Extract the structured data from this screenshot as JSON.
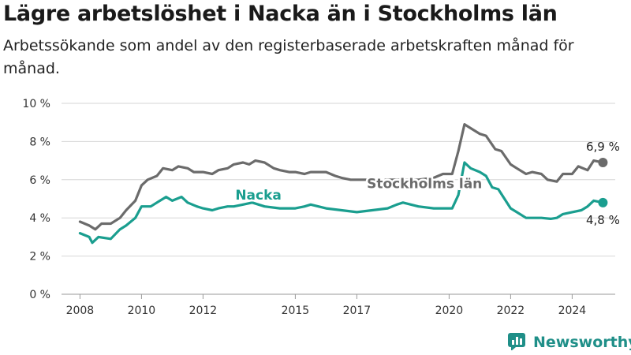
{
  "header": {
    "title": "Lägre arbetslöshet i Nacka än i Stockholms län",
    "subtitle": "Arbetssökande som andel av den registerbaserade arbetskraften månad för månad."
  },
  "branding": {
    "logo_text": "Newsworthy",
    "logo_icon": "bar-chart-icon",
    "color": "#1f8f88"
  },
  "chart_data": {
    "type": "line",
    "title": "",
    "xlabel": "",
    "ylabel": "",
    "xlim": [
      2007.4,
      2025.4
    ],
    "ylim": [
      0,
      10
    ],
    "grid": true,
    "y_ticks": [
      {
        "value": 0,
        "label": "0 %"
      },
      {
        "value": 2,
        "label": "2 %"
      },
      {
        "value": 4,
        "label": "4 %"
      },
      {
        "value": 6,
        "label": "6 %"
      },
      {
        "value": 8,
        "label": "8 %"
      },
      {
        "value": 10,
        "label": "10 %"
      }
    ],
    "x_ticks": [
      {
        "value": 2008,
        "label": "2008"
      },
      {
        "value": 2010,
        "label": "2010"
      },
      {
        "value": 2012,
        "label": "2012"
      },
      {
        "value": 2015,
        "label": "2015"
      },
      {
        "value": 2017,
        "label": "2017"
      },
      {
        "value": 2020,
        "label": "2020"
      },
      {
        "value": 2022,
        "label": "2022"
      },
      {
        "value": 2024,
        "label": "2024"
      }
    ],
    "series": [
      {
        "name": "Stockholms län",
        "color": "#6b6b6b",
        "end_label": "6,9 %",
        "points": [
          [
            2008.0,
            3.8
          ],
          [
            2008.3,
            3.6
          ],
          [
            2008.5,
            3.4
          ],
          [
            2008.7,
            3.7
          ],
          [
            2009.0,
            3.7
          ],
          [
            2009.3,
            4.0
          ],
          [
            2009.5,
            4.4
          ],
          [
            2009.8,
            4.9
          ],
          [
            2010.0,
            5.7
          ],
          [
            2010.2,
            6.0
          ],
          [
            2010.5,
            6.2
          ],
          [
            2010.7,
            6.6
          ],
          [
            2011.0,
            6.5
          ],
          [
            2011.2,
            6.7
          ],
          [
            2011.5,
            6.6
          ],
          [
            2011.7,
            6.4
          ],
          [
            2012.0,
            6.4
          ],
          [
            2012.3,
            6.3
          ],
          [
            2012.5,
            6.5
          ],
          [
            2012.8,
            6.6
          ],
          [
            2013.0,
            6.8
          ],
          [
            2013.3,
            6.9
          ],
          [
            2013.5,
            6.8
          ],
          [
            2013.7,
            7.0
          ],
          [
            2014.0,
            6.9
          ],
          [
            2014.3,
            6.6
          ],
          [
            2014.5,
            6.5
          ],
          [
            2014.8,
            6.4
          ],
          [
            2015.0,
            6.4
          ],
          [
            2015.3,
            6.3
          ],
          [
            2015.5,
            6.4
          ],
          [
            2016.0,
            6.4
          ],
          [
            2016.3,
            6.2
          ],
          [
            2016.5,
            6.1
          ],
          [
            2016.8,
            6.0
          ],
          [
            2017.0,
            6.0
          ],
          [
            2017.3,
            6.0
          ],
          [
            2017.5,
            5.95
          ],
          [
            2018.0,
            6.0
          ],
          [
            2018.5,
            6.0
          ],
          [
            2019.0,
            6.0
          ],
          [
            2019.5,
            6.1
          ],
          [
            2019.8,
            6.3
          ],
          [
            2020.1,
            6.3
          ],
          [
            2020.3,
            7.5
          ],
          [
            2020.5,
            8.9
          ],
          [
            2020.7,
            8.7
          ],
          [
            2021.0,
            8.4
          ],
          [
            2021.2,
            8.3
          ],
          [
            2021.5,
            7.6
          ],
          [
            2021.7,
            7.5
          ],
          [
            2022.0,
            6.8
          ],
          [
            2022.2,
            6.6
          ],
          [
            2022.5,
            6.3
          ],
          [
            2022.7,
            6.4
          ],
          [
            2023.0,
            6.3
          ],
          [
            2023.2,
            6.0
          ],
          [
            2023.5,
            5.9
          ],
          [
            2023.7,
            6.3
          ],
          [
            2024.0,
            6.3
          ],
          [
            2024.2,
            6.7
          ],
          [
            2024.5,
            6.5
          ],
          [
            2024.7,
            7.0
          ],
          [
            2025.0,
            6.9
          ]
        ]
      },
      {
        "name": "Nacka",
        "color": "#1a9e8f",
        "end_label": "4,8 %",
        "points": [
          [
            2008.0,
            3.2
          ],
          [
            2008.3,
            3.0
          ],
          [
            2008.4,
            2.7
          ],
          [
            2008.6,
            3.0
          ],
          [
            2009.0,
            2.9
          ],
          [
            2009.3,
            3.4
          ],
          [
            2009.5,
            3.6
          ],
          [
            2009.8,
            4.0
          ],
          [
            2010.0,
            4.6
          ],
          [
            2010.3,
            4.6
          ],
          [
            2010.5,
            4.8
          ],
          [
            2010.8,
            5.1
          ],
          [
            2011.0,
            4.9
          ],
          [
            2011.3,
            5.1
          ],
          [
            2011.5,
            4.8
          ],
          [
            2011.8,
            4.6
          ],
          [
            2012.0,
            4.5
          ],
          [
            2012.3,
            4.4
          ],
          [
            2012.5,
            4.5
          ],
          [
            2012.8,
            4.6
          ],
          [
            2013.0,
            4.6
          ],
          [
            2013.3,
            4.7
          ],
          [
            2013.6,
            4.8
          ],
          [
            2014.0,
            4.6
          ],
          [
            2014.5,
            4.5
          ],
          [
            2015.0,
            4.5
          ],
          [
            2015.3,
            4.6
          ],
          [
            2015.5,
            4.7
          ],
          [
            2016.0,
            4.5
          ],
          [
            2016.5,
            4.4
          ],
          [
            2017.0,
            4.3
          ],
          [
            2017.5,
            4.4
          ],
          [
            2018.0,
            4.5
          ],
          [
            2018.3,
            4.7
          ],
          [
            2018.5,
            4.8
          ],
          [
            2019.0,
            4.6
          ],
          [
            2019.5,
            4.5
          ],
          [
            2019.8,
            4.5
          ],
          [
            2020.1,
            4.5
          ],
          [
            2020.3,
            5.2
          ],
          [
            2020.5,
            6.9
          ],
          [
            2020.7,
            6.6
          ],
          [
            2021.0,
            6.4
          ],
          [
            2021.2,
            6.2
          ],
          [
            2021.4,
            5.6
          ],
          [
            2021.6,
            5.5
          ],
          [
            2021.8,
            5.0
          ],
          [
            2022.0,
            4.5
          ],
          [
            2022.2,
            4.3
          ],
          [
            2022.5,
            4.0
          ],
          [
            2022.7,
            4.0
          ],
          [
            2023.0,
            4.0
          ],
          [
            2023.3,
            3.95
          ],
          [
            2023.5,
            4.0
          ],
          [
            2023.7,
            4.2
          ],
          [
            2024.0,
            4.3
          ],
          [
            2024.3,
            4.4
          ],
          [
            2024.5,
            4.6
          ],
          [
            2024.7,
            4.9
          ],
          [
            2025.0,
            4.8
          ]
        ]
      }
    ],
    "series_labels": [
      {
        "series": "Nacka",
        "text": "Nacka"
      },
      {
        "series": "Stockholms län",
        "text": "Stockholms län"
      }
    ]
  }
}
